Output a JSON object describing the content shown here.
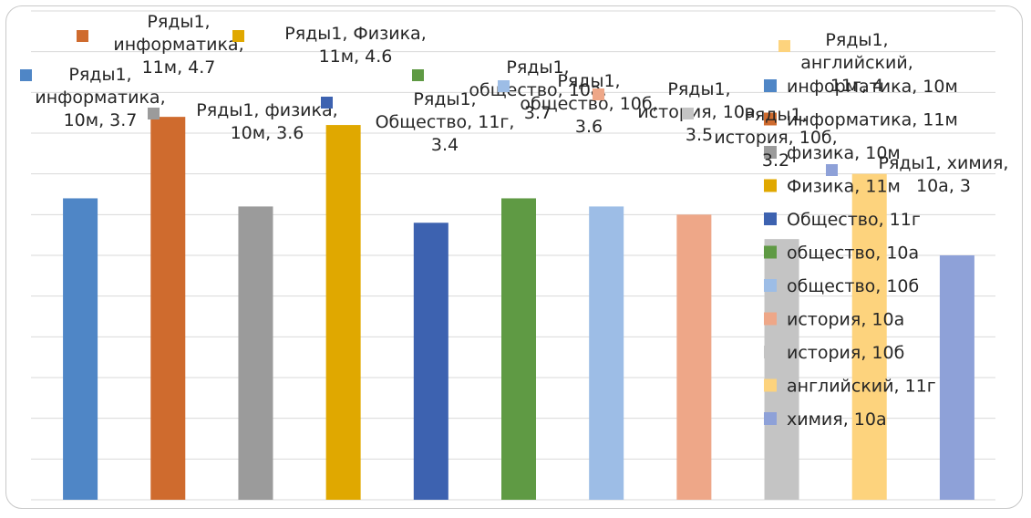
{
  "chart_data": {
    "type": "bar",
    "grid": true,
    "ylim": [
      0,
      6
    ],
    "categories": [
      "информатика, 10м",
      "информатика, 11м",
      "физика, 10м",
      "Физика, 11м",
      "Общество, 11г",
      "общество, 10а",
      "общество, 10б",
      "история, 10а",
      "история, 10б",
      "английский, 11г",
      "химия, 10а"
    ],
    "series": [
      {
        "name": "Ряды1",
        "values": [
          3.7,
          4.7,
          3.6,
          4.6,
          3.4,
          3.7,
          3.6,
          3.5,
          3.2,
          4,
          3
        ]
      }
    ],
    "colors": [
      "#4f86c6",
      "#cf6b2e",
      "#9b9b9b",
      "#e0a800",
      "#3d62b0",
      "#5f9a44",
      "#9dbde6",
      "#eea788",
      "#c4c4c4",
      "#fdd37d",
      "#8ea1d8"
    ],
    "data_labels": [
      [
        "Ряды1,",
        "информатика,",
        "10м, 3.7"
      ],
      [
        "Ряды1,",
        "информатика,",
        "11м, 4.7"
      ],
      [
        "Ряды1, физика,",
        "10м, 3.6"
      ],
      [
        "Ряды1, Физика,",
        "11м, 4.6"
      ],
      [
        "Ряды1,",
        "Общество, 11г,",
        "3.4"
      ],
      [
        "Ряды1,",
        "общество, 10а,",
        "3.7"
      ],
      [
        "Ряды1,",
        "общество, 10б,",
        "3.6"
      ],
      [
        "Ряды1,",
        "история, 10а,",
        "3.5"
      ],
      [
        "Ряды1,",
        "история, 10б,",
        "3.2"
      ],
      [
        "Ряды1,",
        "английский,",
        "11г, 4"
      ],
      [
        "Ряды1, химия,",
        "10а, 3"
      ]
    ],
    "legend_position": "right"
  }
}
